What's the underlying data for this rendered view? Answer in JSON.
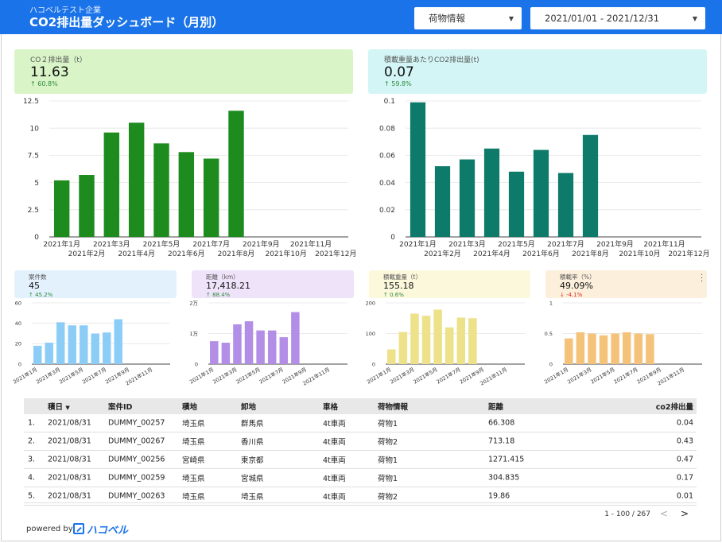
{
  "header": {
    "company": "ハコベルテスト企業",
    "title": "CO2排出量ダッシュボード（月別）",
    "filter_cargo": "荷物情報",
    "filter_date": "2021/01/01 - 2021/12/31"
  },
  "kpi": {
    "co2": {
      "label": "CO２排出量（t）",
      "value": "11.63",
      "change": "60.8%"
    },
    "co2_per_weight": {
      "label": "積載重量あたりCO2排出量(t)",
      "value": "0.07",
      "change": "59.8%"
    },
    "cases": {
      "label": "案件数",
      "value": "45",
      "change": "45.2%"
    },
    "distance": {
      "label": "距離（km）",
      "value": "17,418.21",
      "change": "88.4%"
    },
    "weight": {
      "label": "積載重量（t）",
      "value": "155.18",
      "change": "0.6%"
    },
    "load_rate": {
      "label": "積載率（%）",
      "value": "49.09%",
      "change": "-4.1%"
    }
  },
  "colors": {
    "header": "#1a73e8",
    "co2": "#1e8b1e",
    "co2_per_weight": "#0e7a6a",
    "cases": "#8ccdf7",
    "distance": "#b38ee6",
    "weight": "#ede18a",
    "load_rate": "#f5c27a",
    "up": "#2e8b3a",
    "down": "#d93025"
  },
  "chart_data": [
    {
      "id": "co2",
      "type": "bar",
      "categories": [
        "2021年1月",
        "2021年2月",
        "2021年3月",
        "2021年4月",
        "2021年5月",
        "2021年6月",
        "2021年7月",
        "2021年8月",
        "2021年9月",
        "2021年10月",
        "2021年11月",
        "2021年12月"
      ],
      "values": [
        5.2,
        5.7,
        9.6,
        10.5,
        8.6,
        7.8,
        7.2,
        11.6,
        null,
        null,
        null,
        null
      ],
      "ylim": [
        0,
        12.5
      ],
      "yticks": [
        "0",
        "2.5",
        "5",
        "7.5",
        "10",
        "12.5"
      ],
      "color": "#1e8b1e"
    },
    {
      "id": "co2_per_weight",
      "type": "bar",
      "categories": [
        "2021年1月",
        "2021年2月",
        "2021年3月",
        "2021年4月",
        "2021年5月",
        "2021年6月",
        "2021年7月",
        "2021年8月",
        "2021年9月",
        "2021年10月",
        "2021年11月",
        "2021年12月"
      ],
      "values": [
        0.099,
        0.052,
        0.057,
        0.065,
        0.048,
        0.064,
        0.047,
        0.075,
        null,
        null,
        null,
        null
      ],
      "ylim": [
        0,
        0.1
      ],
      "yticks": [
        "0",
        "0.02",
        "0.04",
        "0.06",
        "0.08",
        "0.1"
      ],
      "color": "#0e7a6a"
    },
    {
      "id": "cases",
      "type": "bar",
      "categories": [
        "2021年1月",
        "2021年2月",
        "2021年3月",
        "2021年4月",
        "2021年5月",
        "2021年6月",
        "2021年7月",
        "2021年8月",
        "2021年9月",
        "2021年10月",
        "2021年11月",
        "2021年12月"
      ],
      "values": [
        18,
        21,
        41,
        38,
        38,
        30,
        31,
        44,
        null,
        null,
        null,
        null
      ],
      "ylim": [
        0,
        60
      ],
      "yticks": [
        "0",
        "20",
        "40",
        "60"
      ],
      "color": "#8ccdf7"
    },
    {
      "id": "distance",
      "type": "bar",
      "categories": [
        "2021年1月",
        "2021年2月",
        "2021年3月",
        "2021年4月",
        "2021年5月",
        "2021年6月",
        "2021年7月",
        "2021年8月",
        "2021年9月",
        "2021年10月",
        "2021年11月",
        "2021年12月"
      ],
      "values": [
        7500,
        7000,
        13000,
        14000,
        11000,
        11000,
        8800,
        17000,
        null,
        null,
        null,
        null
      ],
      "ylim": [
        0,
        20000
      ],
      "yticks": [
        "0",
        "1万",
        "2万"
      ],
      "color": "#b38ee6"
    },
    {
      "id": "weight",
      "type": "bar",
      "categories": [
        "2021年1月",
        "2021年2月",
        "2021年3月",
        "2021年4月",
        "2021年5月",
        "2021年6月",
        "2021年7月",
        "2021年8月",
        "2021年9月",
        "2021年10月",
        "2021年11月",
        "2021年12月"
      ],
      "values": [
        48,
        105,
        165,
        158,
        178,
        120,
        152,
        150,
        null,
        null,
        null,
        null
      ],
      "ylim": [
        0,
        200
      ],
      "yticks": [
        "0",
        "100",
        "200"
      ],
      "color": "#ede18a"
    },
    {
      "id": "load_rate",
      "type": "bar",
      "categories": [
        "2021年1月",
        "2021年2月",
        "2021年3月",
        "2021年4月",
        "2021年5月",
        "2021年6月",
        "2021年7月",
        "2021年8月",
        "2021年9月",
        "2021年10月",
        "2021年11月",
        "2021年12月"
      ],
      "values": [
        0.42,
        0.52,
        0.5,
        0.47,
        0.5,
        0.52,
        0.5,
        0.49,
        null,
        null,
        null,
        null
      ],
      "ylim": [
        0,
        1
      ],
      "yticks": [
        "0",
        "0.5",
        "1"
      ],
      "color": "#f5c27a"
    }
  ],
  "table": {
    "headers": [
      "積日",
      "案件ID",
      "積地",
      "卸地",
      "車格",
      "荷物情報",
      "距離",
      "co2排出量"
    ],
    "sort_indicator": "▼",
    "rows": [
      {
        "num": "1.",
        "date": "2021/08/31",
        "id": "DUMMY_00257",
        "from": "埼玉県",
        "to": "群馬県",
        "truck": "4t車両",
        "cargo": "荷物1",
        "distance": "66.308",
        "co2": "0.04"
      },
      {
        "num": "2.",
        "date": "2021/08/31",
        "id": "DUMMY_00267",
        "from": "埼玉県",
        "to": "香川県",
        "truck": "4t車両",
        "cargo": "荷物2",
        "distance": "713.18",
        "co2": "0.43"
      },
      {
        "num": "3.",
        "date": "2021/08/31",
        "id": "DUMMY_00256",
        "from": "宮崎県",
        "to": "東京都",
        "truck": "4t車両",
        "cargo": "荷物1",
        "distance": "1271.415",
        "co2": "0.47"
      },
      {
        "num": "4.",
        "date": "2021/08/31",
        "id": "DUMMY_00259",
        "from": "埼玉県",
        "to": "宮城県",
        "truck": "4t車両",
        "cargo": "荷物1",
        "distance": "304.835",
        "co2": "0.17"
      },
      {
        "num": "5.",
        "date": "2021/08/31",
        "id": "DUMMY_00263",
        "from": "埼玉県",
        "to": "埼玉県",
        "truck": "4t車両",
        "cargo": "荷物2",
        "distance": "19.86",
        "co2": "0.01"
      }
    ],
    "pagination": "1 - 100 / 267"
  },
  "footer": {
    "powered_by": "powered by",
    "brand": "ハコベル"
  }
}
